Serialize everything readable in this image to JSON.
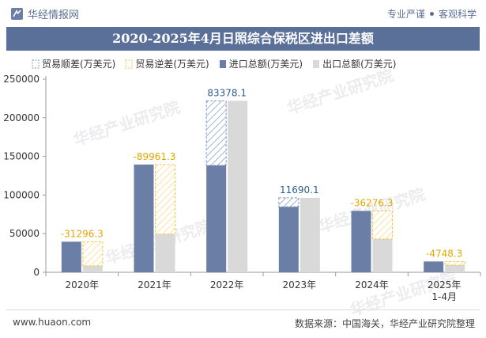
{
  "header": {
    "brand": "华经情报网",
    "tag_1": "专业严谨",
    "tag_2": "客观科学"
  },
  "title": "2020-2025年4月日照综合保税区进出口差额",
  "legend": {
    "surplus": "贸易顺差(万美元)",
    "deficit": "贸易逆差(万美元)",
    "import": "进口总额(万美元)",
    "export": "出口总额(万美元)"
  },
  "watermark": "华经产业研究院",
  "colors": {
    "import": "#6b7ea6",
    "export": "#d9d9d9",
    "surplus_stroke": "#7f98c0",
    "deficit_stroke": "#f5c242",
    "surplus_label": "#2e5e8c",
    "deficit_label": "#e0a800"
  },
  "chart_data": {
    "type": "bar",
    "categories": [
      "2020年",
      "2021年",
      "2022年",
      "2023年",
      "2024年",
      "2025年 1-4月"
    ],
    "series": [
      {
        "name": "进口总额(万美元)",
        "values": [
          39600,
          139500,
          138500,
          84800,
          79500,
          14000
        ]
      },
      {
        "name": "出口总额(万美元)",
        "values": [
          8300,
          49500,
          221900,
          96500,
          43200,
          9250
        ]
      }
    ],
    "balance": [
      {
        "category": "2020年",
        "type": "deficit",
        "value": -31296.3,
        "label": "-31296.3"
      },
      {
        "category": "2021年",
        "type": "deficit",
        "value": -89961.3,
        "label": "-89961.3"
      },
      {
        "category": "2022年",
        "type": "surplus",
        "value": 83378.1,
        "label": "83378.1"
      },
      {
        "category": "2023年",
        "type": "surplus",
        "value": 11690.1,
        "label": "11690.1"
      },
      {
        "category": "2024年",
        "type": "deficit",
        "value": -36276.3,
        "label": "-36276.3"
      },
      {
        "category": "2025年 1-4月",
        "type": "deficit",
        "value": -4748.3,
        "label": "-4748.3"
      }
    ],
    "y_ticks": [
      0,
      50000,
      100000,
      150000,
      200000,
      250000
    ],
    "ylim": [
      0,
      250000
    ],
    "title": "2020-2025年4月日照综合保税区进出口差额",
    "xlabel": "",
    "ylabel": ""
  },
  "footer": {
    "website": "www.huaon.com",
    "source": "数据来源：中国海关，华经产业研究院整理"
  }
}
